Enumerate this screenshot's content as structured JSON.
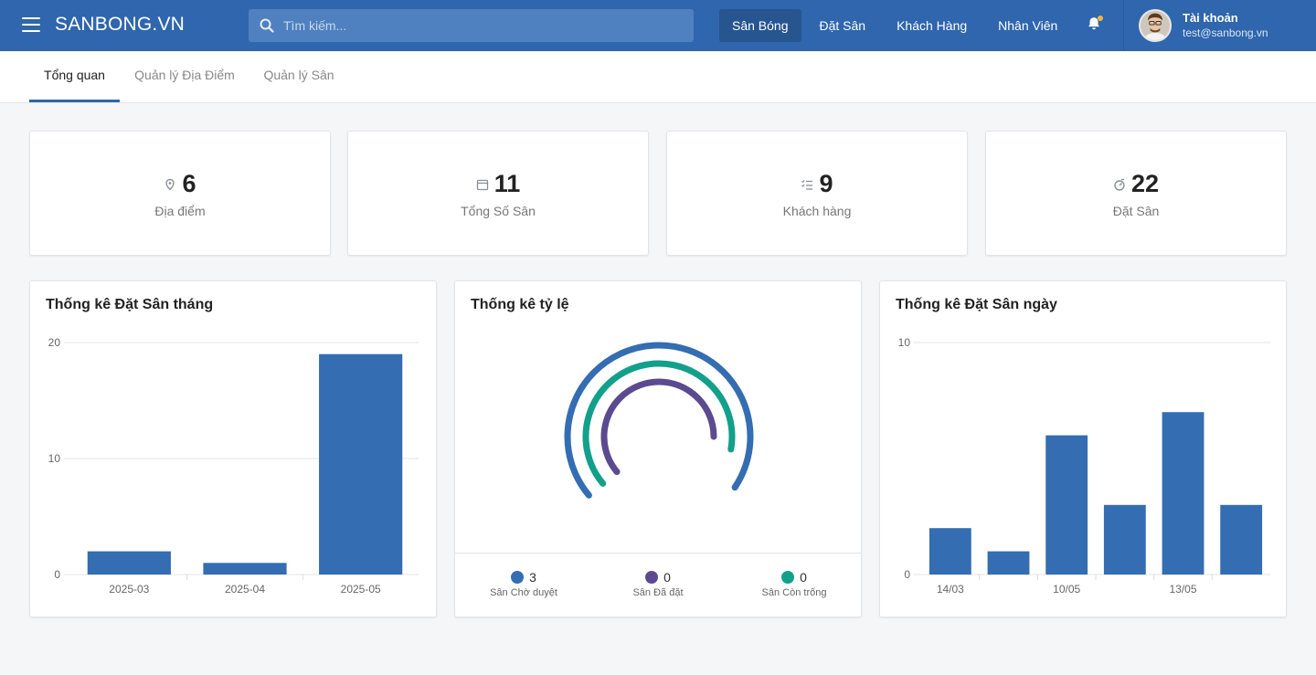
{
  "header": {
    "brand": "SANBONG.VN",
    "search_placeholder": "Tìm kiếm...",
    "nav": [
      {
        "label": "Sân Bóng",
        "active": true
      },
      {
        "label": "Đặt Sân",
        "active": false
      },
      {
        "label": "Khách Hàng",
        "active": false
      },
      {
        "label": "Nhân Viên",
        "active": false
      }
    ],
    "account": {
      "name": "Tài khoản",
      "email": "test@sanbong.vn"
    },
    "accent": "#2f66ad",
    "notification_dot": "#f5b642"
  },
  "tabs": [
    {
      "label": "Tổng quan",
      "active": true
    },
    {
      "label": "Quản lý Địa Điểm",
      "active": false
    },
    {
      "label": "Quản lý Sân",
      "active": false
    }
  ],
  "stats": [
    {
      "icon": "map-pin-icon",
      "value": "6",
      "label": "Địa điểm"
    },
    {
      "icon": "calendar-icon",
      "value": "11",
      "label": "Tổng Số Sân"
    },
    {
      "icon": "checklist-icon",
      "value": "9",
      "label": "Khách hàng"
    },
    {
      "icon": "timer-icon",
      "value": "22",
      "label": "Đặt Sân"
    }
  ],
  "monthly": {
    "title": "Thống kê Đặt Sân tháng",
    "chart_data": {
      "type": "bar",
      "categories": [
        "2025-03",
        "2025-04",
        "2025-05"
      ],
      "values": [
        2,
        1,
        19
      ],
      "ylim": [
        0,
        20
      ],
      "yticks": [
        0,
        10,
        20
      ],
      "color": "#346db1",
      "grid": true
    }
  },
  "ratio": {
    "title": "Thống kê tỷ lệ",
    "chart_data": {
      "type": "radial-bar",
      "series": [
        {
          "name": "Sân Chờ duyệt",
          "value": 3,
          "color": "#346db1"
        },
        {
          "name": "Sân Đã đặt",
          "value": 0,
          "color": "#5b4a8f"
        },
        {
          "name": "Sân Còn trống",
          "value": 0,
          "color": "#12a08a"
        }
      ]
    }
  },
  "daily": {
    "title": "Thống kê Đặt Sân ngày",
    "chart_data": {
      "type": "bar",
      "categories": [
        "14/03",
        "",
        "10/05",
        "",
        "13/05",
        ""
      ],
      "values": [
        2,
        1,
        6,
        3,
        7,
        3
      ],
      "ylim": [
        0,
        10
      ],
      "yticks": [
        0,
        10
      ],
      "color": "#346db1",
      "grid": true
    }
  }
}
